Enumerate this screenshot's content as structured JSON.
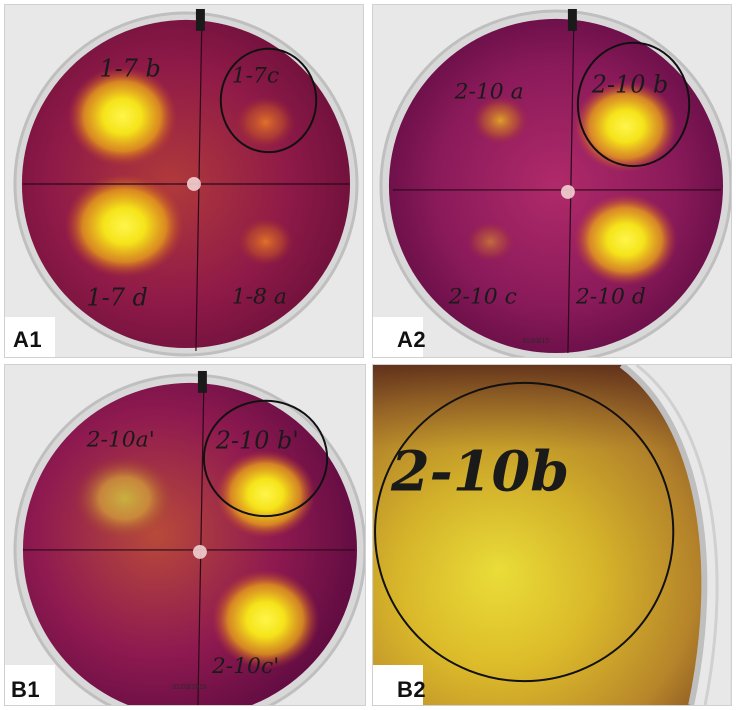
{
  "panels": {
    "a1": {
      "label": "A1",
      "samples": [
        "1-7 b",
        "1-7c",
        "1-7 d",
        "1-8 a"
      ]
    },
    "a2": {
      "label": "A2",
      "samples": [
        "2-10 a",
        "2-10 b",
        "2-10 c",
        "2-10 d"
      ],
      "date": "31/03/15"
    },
    "b1": {
      "label": "B1",
      "samples": [
        "2-10a'",
        "2-10 b'",
        "2-10c'"
      ],
      "date": "31/03/2015"
    },
    "b2": {
      "label": "B2",
      "samples": [
        "2-10b"
      ]
    }
  },
  "colors": {
    "agar_magenta": "#9a1a5a",
    "agar_dark": "#5a0a38",
    "halo_yellow": "#f5e41a",
    "halo_orange": "#e88a1a",
    "amber": "#c4872a"
  }
}
